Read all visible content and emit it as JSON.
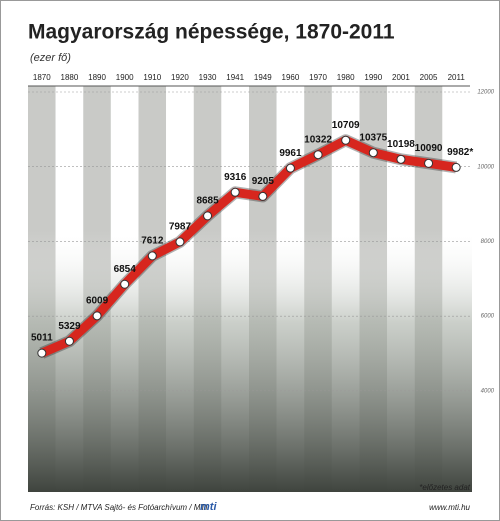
{
  "chart_data": {
    "type": "line",
    "title": "Magyarország népessége, 1870-2011",
    "subtitle": "(ezer fő)",
    "categories": [
      "1870",
      "1880",
      "1890",
      "1900",
      "1910",
      "1920",
      "1930",
      "1941",
      "1949",
      "1960",
      "1970",
      "1980",
      "1990",
      "2001",
      "2005",
      "2011"
    ],
    "values": [
      5011,
      5329,
      6009,
      6854,
      7612,
      7987,
      8685,
      9316,
      9205,
      9961,
      10322,
      10709,
      10375,
      10198,
      10090,
      9982
    ],
    "value_labels": [
      "5011",
      "5329",
      "6009",
      "6854",
      "7612",
      "7987",
      "8685",
      "9316",
      "9205",
      "9961",
      "10322",
      "10709",
      "10375",
      "10198",
      "10090",
      "9982*"
    ],
    "color": "#d7261e",
    "ylim": [
      1400,
      12000
    ],
    "yticks": [
      4000,
      6000,
      8000,
      10000,
      12000
    ],
    "footnote": "*előzetes adat",
    "source": "Forrás: KSH / MTVA Sajtó- és Fotóarchívum / MTI",
    "logo": "mti",
    "website": "www.mti.hu"
  }
}
